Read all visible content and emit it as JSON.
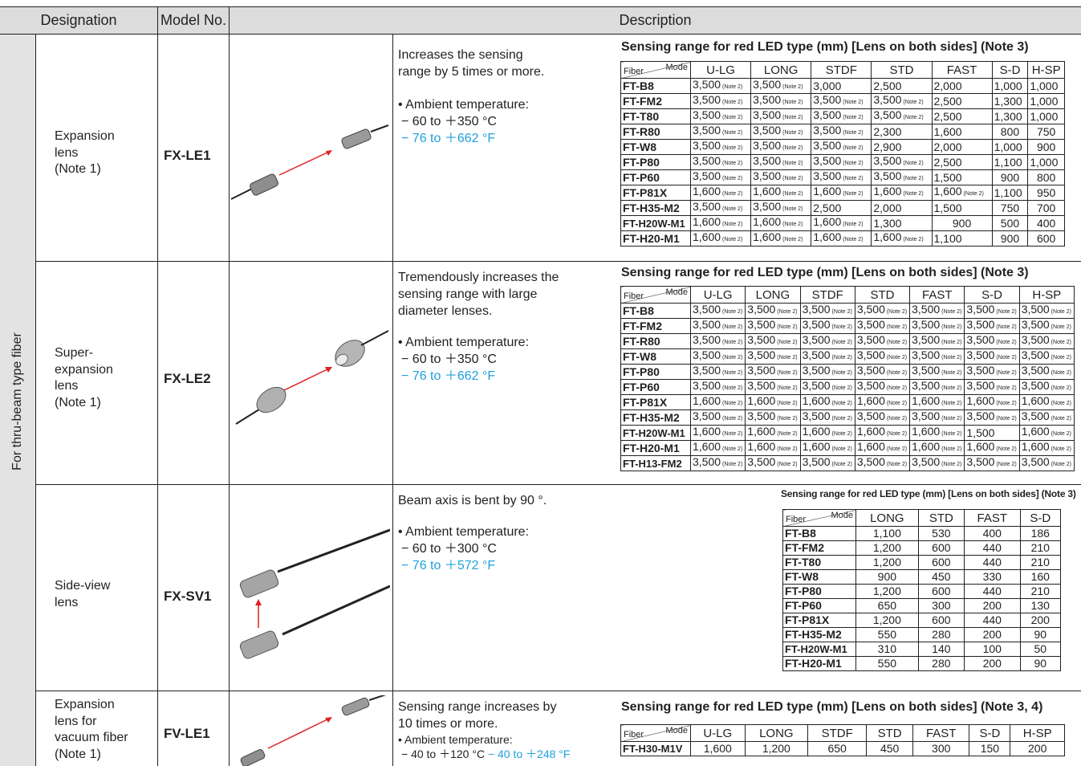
{
  "header": {
    "designation": "Designation",
    "model": "Model No.",
    "description": "Description"
  },
  "side_label": "For thru-beam type fiber",
  "mode_label": "Mode",
  "fiber_label": "Fiber",
  "note2": "Note 2",
  "rows": [
    {
      "designation": [
        "Expansion",
        "lens",
        "(Note 1)"
      ],
      "model": "FX-LE1",
      "desc": [
        "Increases the sensing",
        "range by 5 times or more."
      ],
      "bullet": "• Ambient temperature:",
      "temp_c": "− 60 to ＋350 °C",
      "temp_f": "− 76 to ＋662 °F",
      "table_title": "Sensing range for red LED type (mm) [Lens on both sides] (Note 3)",
      "modes": [
        "U-LG",
        "LONG",
        "STDF",
        "STD",
        "FAST",
        "S-D",
        "H-SP"
      ],
      "data": [
        [
          "FT-B8",
          [
            "3,500*",
            "3,500*",
            "3,000",
            "2,500",
            "2,000",
            "1,000",
            "1,000"
          ]
        ],
        [
          "FT-FM2",
          [
            "3,500*",
            "3,500*",
            "3,500*",
            "3,500*",
            "2,500",
            "1,300",
            "1,000"
          ]
        ],
        [
          "FT-T80",
          [
            "3,500*",
            "3,500*",
            "3,500*",
            "3,500*",
            "2,500",
            "1,300",
            "1,000"
          ]
        ],
        [
          "FT-R80",
          [
            "3,500*",
            "3,500*",
            "3,500*",
            "2,300",
            "1,600",
            "800",
            "750"
          ]
        ],
        [
          "FT-W8",
          [
            "3,500*",
            "3,500*",
            "3,500*",
            "2,900",
            "2,000",
            "1,000",
            "900"
          ]
        ],
        [
          "FT-P80",
          [
            "3,500*",
            "3,500*",
            "3,500*",
            "3,500*",
            "2,500",
            "1,100",
            "1,000"
          ]
        ],
        [
          "FT-P60",
          [
            "3,500*",
            "3,500*",
            "3,500*",
            "3,500*",
            "1,500",
            "900",
            "800"
          ]
        ],
        [
          "FT-P81X",
          [
            "1,600*",
            "1,600*",
            "1,600*",
            "1,600*",
            "1,600*",
            "1,100",
            "950"
          ]
        ],
        [
          "FT-H35-M2",
          [
            "3,500*",
            "3,500*",
            "2,500",
            "2,000",
            "1,500",
            "750",
            "700"
          ]
        ],
        [
          "FT-H20W-M1",
          [
            "1,600*",
            "1,600*",
            "1,600*",
            "1,300",
            "900",
            "500",
            "400"
          ]
        ],
        [
          "FT-H20-M1",
          [
            "1,600*",
            "1,600*",
            "1,600*",
            "1,600*",
            "1,100",
            "900",
            "600"
          ]
        ]
      ]
    },
    {
      "designation": [
        "Super-",
        "expansion",
        "lens",
        "(Note 1)"
      ],
      "model": "FX-LE2",
      "desc": [
        "Tremendously increases the",
        "sensing range with large",
        "diameter lenses."
      ],
      "bullet": "• Ambient temperature:",
      "temp_c": "− 60 to ＋350 °C",
      "temp_f": "− 76 to ＋662 °F",
      "table_title": "Sensing range for red LED type (mm) [Lens on both sides] (Note 3)",
      "modes": [
        "U-LG",
        "LONG",
        "STDF",
        "STD",
        "FAST",
        "S-D",
        "H-SP"
      ],
      "data": [
        [
          "FT-B8",
          [
            "3,500*",
            "3,500*",
            "3,500*",
            "3,500*",
            "3,500*",
            "3,500*",
            "3,500*"
          ]
        ],
        [
          "FT-FM2",
          [
            "3,500*",
            "3,500*",
            "3,500*",
            "3,500*",
            "3,500*",
            "3,500*",
            "3,500*"
          ]
        ],
        [
          "FT-R80",
          [
            "3,500*",
            "3,500*",
            "3,500*",
            "3,500*",
            "3,500*",
            "3,500*",
            "3,500*"
          ]
        ],
        [
          "FT-W8",
          [
            "3,500*",
            "3,500*",
            "3,500*",
            "3,500*",
            "3,500*",
            "3,500*",
            "3,500*"
          ]
        ],
        [
          "FT-P80",
          [
            "3,500*",
            "3,500*",
            "3,500*",
            "3,500*",
            "3,500*",
            "3,500*",
            "3,500*"
          ]
        ],
        [
          "FT-P60",
          [
            "3,500*",
            "3,500*",
            "3,500*",
            "3,500*",
            "3,500*",
            "3,500*",
            "3,500*"
          ]
        ],
        [
          "FT-P81X",
          [
            "1,600*",
            "1,600*",
            "1,600*",
            "1,600*",
            "1,600*",
            "1,600*",
            "1,600*"
          ]
        ],
        [
          "FT-H35-M2",
          [
            "3,500*",
            "3,500*",
            "3,500*",
            "3,500*",
            "3,500*",
            "3,500*",
            "3,500*"
          ]
        ],
        [
          "FT-H20W-M1",
          [
            "1,600*",
            "1,600*",
            "1,600*",
            "1,600*",
            "1,600*",
            "1,500",
            "1,600*"
          ]
        ],
        [
          "FT-H20-M1",
          [
            "1,600*",
            "1,600*",
            "1,600*",
            "1,600*",
            "1,600*",
            "1,600*",
            "1,600*"
          ]
        ],
        [
          "FT-H13-FM2",
          [
            "3,500*",
            "3,500*",
            "3,500*",
            "3,500*",
            "3,500*",
            "3,500*",
            "3,500*"
          ]
        ]
      ]
    },
    {
      "designation": [
        "Side-view",
        "lens"
      ],
      "model": "FX-SV1",
      "desc": [
        "Beam axis is bent by 90 °."
      ],
      "bullet": "• Ambient temperature:",
      "temp_c": "− 60 to ＋300 °C",
      "temp_f": "− 76 to ＋572 °F",
      "table_title": "Sensing range for red LED type (mm) [Lens on both sides] (Note 3)",
      "modes": [
        "LONG",
        "STD",
        "FAST",
        "S-D"
      ],
      "data": [
        [
          "FT-B8",
          [
            "1,100",
            "530",
            "400",
            "186"
          ]
        ],
        [
          "FT-FM2",
          [
            "1,200",
            "600",
            "440",
            "210"
          ]
        ],
        [
          "FT-T80",
          [
            "1,200",
            "600",
            "440",
            "210"
          ]
        ],
        [
          "FT-W8",
          [
            "900",
            "450",
            "330",
            "160"
          ]
        ],
        [
          "FT-P80",
          [
            "1,200",
            "600",
            "440",
            "210"
          ]
        ],
        [
          "FT-P60",
          [
            "650",
            "300",
            "200",
            "130"
          ]
        ],
        [
          "FT-P81X",
          [
            "1,200",
            "600",
            "440",
            "200"
          ]
        ],
        [
          "FT-H35-M2",
          [
            "550",
            "280",
            "200",
            "90"
          ]
        ],
        [
          "FT-H20W-M1",
          [
            "310",
            "140",
            "100",
            "50"
          ]
        ],
        [
          "FT-H20-M1",
          [
            "550",
            "280",
            "200",
            "90"
          ]
        ]
      ]
    },
    {
      "designation": [
        "Expansion",
        "lens for",
        "vacuum fiber",
        "(Note 1)"
      ],
      "model": "FV-LE1",
      "desc": [
        "Sensing range increases by",
        "10 times or more."
      ],
      "bullet": "• Ambient temperature:",
      "temp_c": "− 40 to ＋120 °C",
      "temp_f": "− 40 to ＋248 °F",
      "table_title": "Sensing range for red LED type (mm) [Lens on both sides] (Note 3, 4)",
      "modes": [
        "U-LG",
        "LONG",
        "STDF",
        "STD",
        "FAST",
        "S-D",
        "H-SP"
      ],
      "data": [
        [
          "FT-H30-M1V",
          [
            "1,600",
            "1,200",
            "650",
            "450",
            "300",
            "150",
            "200"
          ]
        ]
      ]
    }
  ]
}
